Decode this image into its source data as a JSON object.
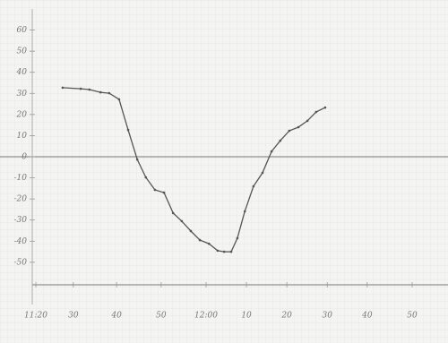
{
  "chart_data": {
    "type": "line",
    "x": [
      0.65,
      1.09,
      1.3,
      1.57,
      1.78,
      2.02,
      2.24,
      2.46,
      2.67,
      2.89,
      3.11,
      3.33,
      3.54,
      3.76,
      3.98,
      4.2,
      4.41,
      4.57,
      4.74,
      4.89,
      5.07,
      5.28,
      5.5,
      5.72,
      5.93,
      6.15,
      6.37,
      6.59,
      6.8,
      7.02
    ],
    "values": [
      32.7,
      32.2,
      31.8,
      30.5,
      30.1,
      27.2,
      12.7,
      -1.3,
      -9.8,
      -15.7,
      -17.0,
      -26.7,
      -30.5,
      -35.2,
      -39.5,
      -41.2,
      -44.5,
      -45.0,
      -45.0,
      -38.6,
      -25.9,
      -14.0,
      -7.6,
      2.5,
      7.6,
      12.3,
      14.0,
      17.0,
      21.2,
      23.3
    ],
    "color": "#555555",
    "xlim": [
      0,
      10
    ],
    "xticks": [
      {
        "value": 0,
        "label": "11:20"
      },
      {
        "value": 0.91,
        "label": "30"
      },
      {
        "value": 1.96,
        "label": "40"
      },
      {
        "value": 3.04,
        "label": "50"
      },
      {
        "value": 4.13,
        "label": "12:00"
      },
      {
        "value": 5.11,
        "label": "10"
      },
      {
        "value": 6.09,
        "label": "20"
      },
      {
        "value": 7.07,
        "label": "30"
      },
      {
        "value": 8.04,
        "label": "40"
      },
      {
        "value": 9.13,
        "label": "50"
      }
    ],
    "ylim": [
      -70,
      70
    ],
    "yticks": [
      60,
      50,
      40,
      30,
      20,
      10,
      0,
      -10,
      -20,
      -30,
      -40,
      -50
    ]
  }
}
